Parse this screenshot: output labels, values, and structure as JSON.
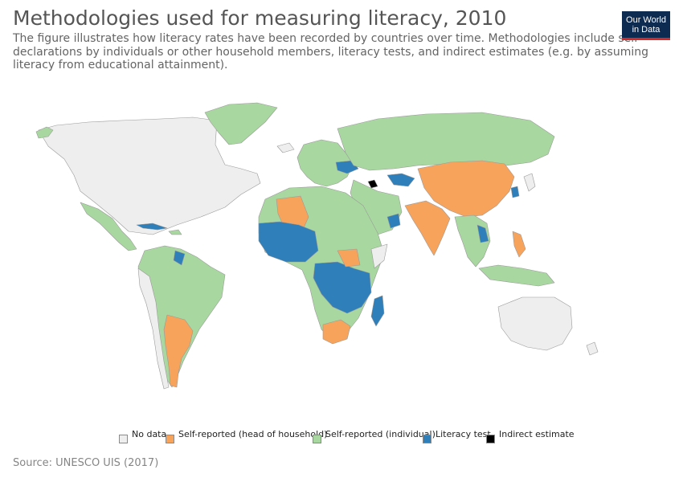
{
  "title": "Methodologies used for measuring literacy, 2010",
  "subtitle": "The figure illustrates how literacy rates have been recorded by countries over time. Methodologies include self-declarations by individuals or other household members, literacy tests, and indirect estimates (e.g. by assuming literacy from educational attainment).",
  "logo": {
    "line1": "Our World",
    "line2": "in Data"
  },
  "source": "Source: UNESCO UIS (2017)",
  "colors": {
    "no_data": "#eeeeee",
    "self_household": "#f7a35c",
    "self_individual": "#a8d8a0",
    "literacy_test": "#2e7fba",
    "indirect": "#000000",
    "border": "#9a9a9a"
  },
  "legend": [
    {
      "label": "No data",
      "color": "#eeeeee"
    },
    {
      "label": "Self-reported (head of household)",
      "color": "#f7a35c"
    },
    {
      "label": "Self-reported (individual)",
      "color": "#a8d8a0"
    },
    {
      "label": "Literacy test",
      "color": "#2e7fba"
    },
    {
      "label": "Indirect estimate",
      "color": "#000000"
    }
  ]
}
